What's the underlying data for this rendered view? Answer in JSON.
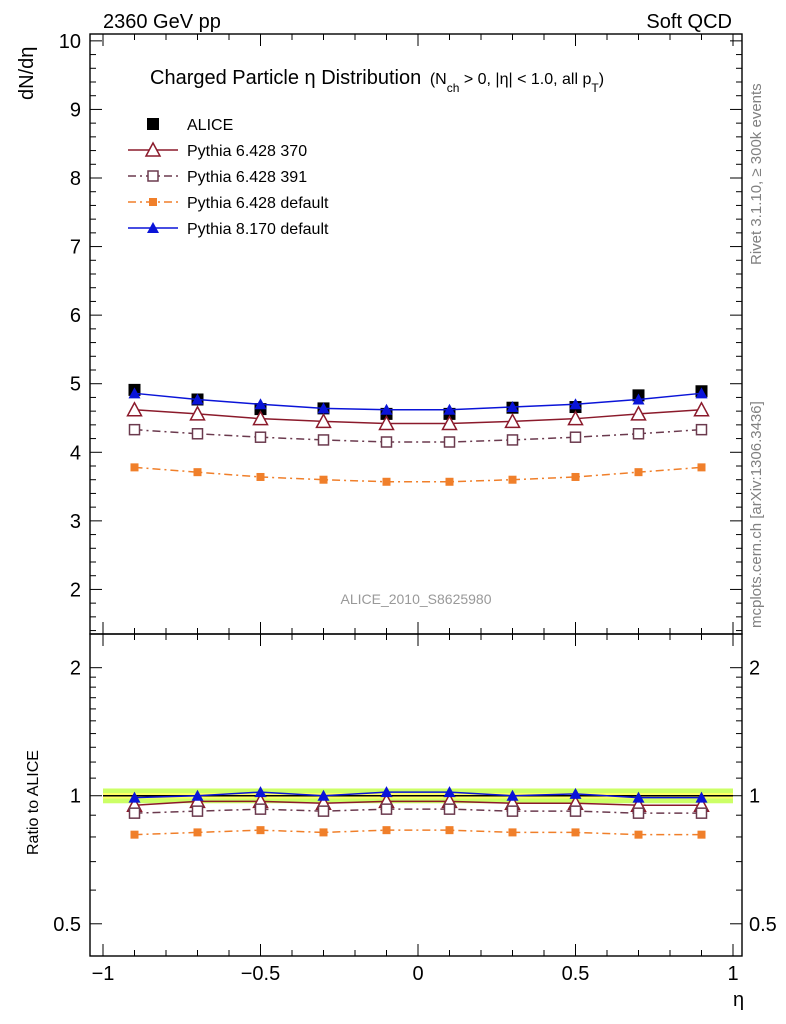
{
  "header": {
    "left": "2360 GeV pp",
    "right": "Soft QCD"
  },
  "side": {
    "rivet": "Rivet 3.1.10, ≥ 300k events",
    "mcplots": "mcplots.cern.ch [arXiv:1306.3436]"
  },
  "chart_data": [
    {
      "type": "line",
      "title": "Charged Particle η Distribution",
      "title_note": {
        "pre": "(N",
        "sub1": "ch",
        "mid": " > 0, |η| < 1.0, all p",
        "sub2": "T",
        "post": ")"
      },
      "ylabel": "dN/dη",
      "xlabel": "η",
      "watermark": "ALICE_2010_S8625980",
      "xlim": [
        -1.0,
        1.0
      ],
      "ylim": [
        1.35,
        10.1
      ],
      "yticks": [
        2,
        3,
        4,
        5,
        6,
        7,
        8,
        9,
        10
      ],
      "x": [
        -0.9,
        -0.7,
        -0.5,
        -0.3,
        -0.1,
        0.1,
        0.3,
        0.5,
        0.7,
        0.9
      ],
      "legend_position": "top-left",
      "series": [
        {
          "name": "ALICE",
          "color": "#000000",
          "marker": "square-filled",
          "line": "none",
          "values": [
            4.91,
            4.77,
            4.63,
            4.64,
            4.56,
            4.56,
            4.65,
            4.66,
            4.83,
            4.89
          ]
        },
        {
          "name": "Pythia 6.428 370",
          "color": "#8b1a2b",
          "marker": "triangle-open",
          "line": "solid",
          "values": [
            4.62,
            4.56,
            4.49,
            4.45,
            4.42,
            4.42,
            4.45,
            4.49,
            4.56,
            4.62
          ]
        },
        {
          "name": "Pythia 6.428 391",
          "color": "#6b3a4e",
          "marker": "square-open",
          "line": "dashdot",
          "values": [
            4.33,
            4.27,
            4.22,
            4.18,
            4.15,
            4.15,
            4.18,
            4.22,
            4.27,
            4.33
          ]
        },
        {
          "name": "Pythia 6.428 default",
          "color": "#f07f2a",
          "marker": "square-filled-small",
          "line": "dashdot",
          "values": [
            3.78,
            3.71,
            3.64,
            3.6,
            3.57,
            3.57,
            3.6,
            3.64,
            3.71,
            3.78
          ]
        },
        {
          "name": "Pythia 8.170 default",
          "color": "#0a14d8",
          "marker": "triangle-filled",
          "line": "solid",
          "values": [
            4.86,
            4.77,
            4.7,
            4.64,
            4.62,
            4.62,
            4.66,
            4.7,
            4.77,
            4.86
          ]
        }
      ]
    },
    {
      "type": "line",
      "ylabel": "Ratio to ALICE",
      "xlabel": "η",
      "xlim": [
        -1.0,
        1.0
      ],
      "ylim": [
        0.42,
        2.4
      ],
      "y_scale": "log",
      "yticks": [
        0.5,
        1,
        2
      ],
      "ytick_labels": [
        "0.5",
        "1",
        "2"
      ],
      "xticks": [
        -1,
        -0.5,
        0,
        0.5,
        1
      ],
      "xtick_labels": [
        "−1",
        "−0.5",
        "0",
        "0.5",
        "1"
      ],
      "x": [
        -0.9,
        -0.7,
        -0.5,
        -0.3,
        -0.1,
        0.1,
        0.3,
        0.5,
        0.7,
        0.9
      ],
      "band": {
        "color": "#ccff66",
        "inner_color": "#ffff66",
        "low": 0.96,
        "high": 1.04
      },
      "series": [
        {
          "name": "Pythia 6.428 370",
          "color": "#8b1a2b",
          "marker": "triangle-open",
          "line": "solid",
          "values": [
            0.95,
            0.97,
            0.97,
            0.96,
            0.97,
            0.97,
            0.96,
            0.96,
            0.95,
            0.95
          ]
        },
        {
          "name": "Pythia 6.428 391",
          "color": "#6b3a4e",
          "marker": "square-open",
          "line": "dashdot",
          "values": [
            0.91,
            0.92,
            0.93,
            0.92,
            0.93,
            0.93,
            0.92,
            0.92,
            0.91,
            0.91
          ]
        },
        {
          "name": "Pythia 6.428 default",
          "color": "#f07f2a",
          "marker": "square-filled-small",
          "line": "dashdot",
          "values": [
            0.81,
            0.82,
            0.83,
            0.82,
            0.83,
            0.83,
            0.82,
            0.82,
            0.81,
            0.81
          ]
        },
        {
          "name": "Pythia 8.170 default",
          "color": "#0a14d8",
          "marker": "triangle-filled",
          "line": "solid",
          "values": [
            0.99,
            1.0,
            1.02,
            1.0,
            1.02,
            1.02,
            1.0,
            1.01,
            0.99,
            0.99
          ]
        }
      ]
    }
  ]
}
